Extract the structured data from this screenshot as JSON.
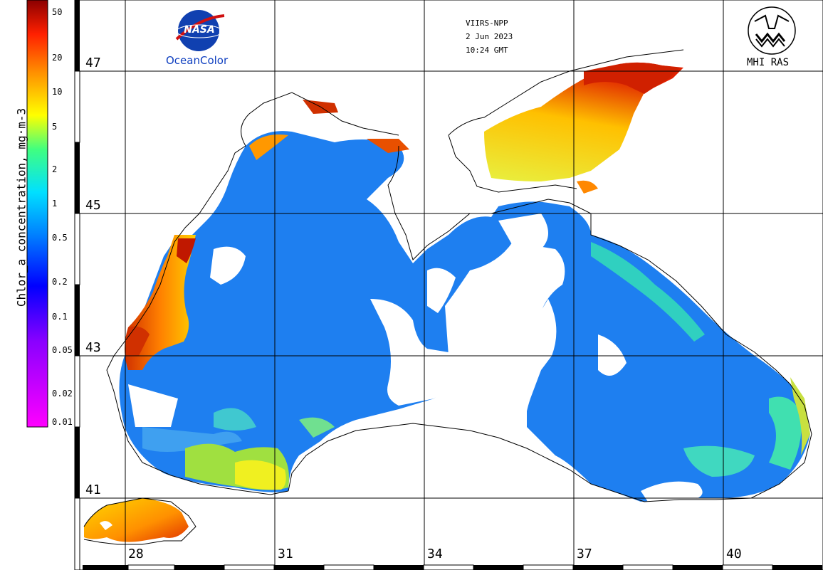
{
  "header": {
    "satellite": "VIIRS-NPP",
    "date": "2 Jun 2023",
    "time": "10:24 GMT"
  },
  "logos": {
    "nasa_text": "NASA",
    "oceancolor_text": "OceanColor",
    "mhi_text": "MHI RAS"
  },
  "colorbar": {
    "title": "Chlor_a concentration, mg·m-3",
    "ticks": [
      "50",
      "20",
      "10",
      "5",
      "2",
      "1",
      "0.5",
      "0.2",
      "0.1",
      "0.05",
      "0.02",
      "0.01"
    ]
  },
  "axes": {
    "latitudes": [
      "47",
      "45",
      "43",
      "41"
    ],
    "longitudes": [
      "28",
      "31",
      "34",
      "37",
      "40"
    ]
  },
  "colors": {
    "low": "#ff00ff",
    "mid_low": "#0000ff",
    "mid": "#00c8ff",
    "mid_high": "#ffff00",
    "high": "#8b0000",
    "sea": "#1e7ff0",
    "coast": "#000000"
  }
}
